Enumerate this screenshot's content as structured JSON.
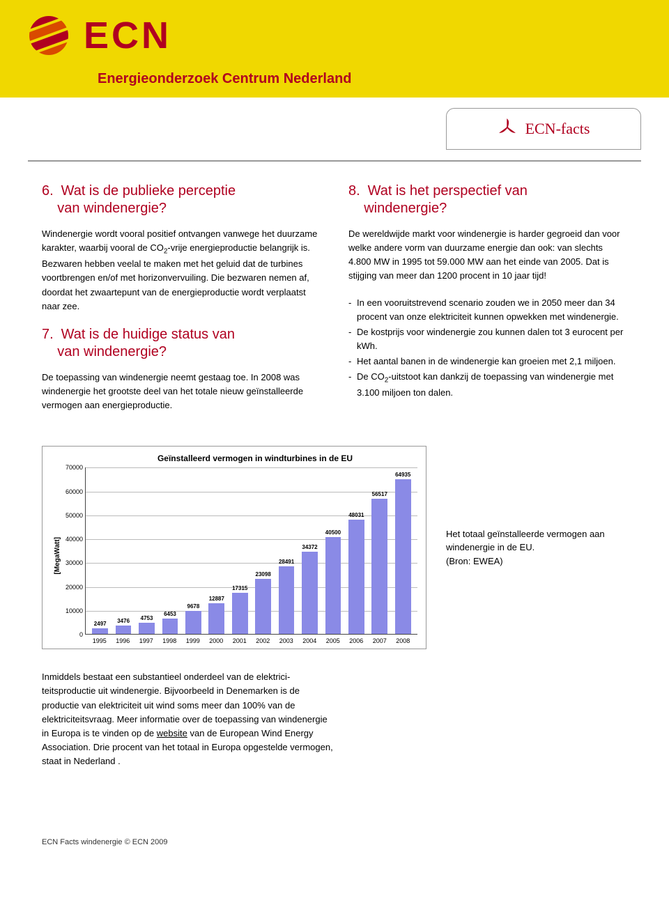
{
  "brand": {
    "name": "ECN",
    "tagline": "Energieonderzoek Centrum Nederland",
    "facts_label": "ECN-facts",
    "accent_color": "#b00020",
    "header_bg": "#f0d800"
  },
  "left_column": {
    "section6": {
      "num": "6.",
      "title_l1": "Wat is de publieke perceptie",
      "title_l2": "van windenergie?",
      "body": "Windenergie wordt vooral positief ontvangen vanwege het duurzame karakter, waarbij vooral de CO",
      "body_sub": "2",
      "body_tail": "-vrije energieproductie belangrijk is. Bezwaren hebben veelal te maken met het geluid dat de turbines voortbrengen en/of met horizonvervuiling. Die bezwaren nemen af, doordat het zwaartepunt van de energie­productie wordt verplaatst naar zee."
    },
    "section7": {
      "num": "7.",
      "title_l1": "Wat is de huidige status van",
      "title_l2": "van windenergie?",
      "body": "De toepassing van windenergie neemt gestaag toe. In 2008 was windenergie het grootste deel van het totale nieuw geïnstalleerde vermogen aan energieproductie."
    }
  },
  "right_column": {
    "section8": {
      "num": "8.",
      "title_l1": "Wat is het perspectief van",
      "title_l2": "windenergie?",
      "intro": "De wereldwijde markt voor windenergie is harder gegroeid dan voor welke andere vorm van duurzame energie dan ook: van slechts 4.800 MW in 1995 tot 59.000 MW aan het einde van 2005. Dat is stijging van meer dan 1200 procent in 10 jaar tijd!",
      "bullets": [
        "In een vooruitstrevend scenario zouden we in 2050 meer dan 34 procent van onze elektriciteit kunnen opwekken met windenergie.",
        "De kostprijs voor windenergie zou kunnen dalen tot 3 eurocent per kWh.",
        "Het aantal banen in de windenergie kan groeien met 2,1 miljoen."
      ],
      "bullet_co2_pre": "De CO",
      "bullet_co2_sub": "2",
      "bullet_co2_post": "-uitstoot kan dankzij de toepassing van windenergie met 3.100 miljoen ton dalen."
    }
  },
  "chart": {
    "type": "bar",
    "title": "Geïnstalleerd vermogen in windturbines in de EU",
    "ylabel": "[MegaWatt]",
    "categories": [
      "1995",
      "1996",
      "1997",
      "1998",
      "1999",
      "2000",
      "2001",
      "2002",
      "2003",
      "2004",
      "2005",
      "2006",
      "2007",
      "2008"
    ],
    "values": [
      2497,
      3476,
      4753,
      6453,
      9678,
      12887,
      17315,
      23098,
      28491,
      34372,
      40500,
      48031,
      56517,
      64935
    ],
    "bar_color": "#8a8ae6",
    "grid_color": "#bbbbbb",
    "axis_color": "#444444",
    "ylim_max": 70000,
    "ytick_step": 10000,
    "yticks": [
      0,
      10000,
      20000,
      30000,
      40000,
      50000,
      60000,
      70000
    ],
    "title_fontsize": 12,
    "label_fontsize": 9,
    "value_fontsize": 8,
    "background_color": "#ffffff",
    "bar_width": 0.68
  },
  "chart_caption": {
    "l1": "Het totaal geïnstalleerde vermogen aan windenergie in de EU.",
    "l2": "(Bron: EWEA)"
  },
  "lower": {
    "text_pre": "Inmiddels bestaat een substantieel onderdeel van de elektrici­teitsproductie uit windenergie. Bijvoorbeeld in Denemarken is de productie van elektriciteit uit wind soms meer dan 100% van de elektriciteitsvraag. Meer informatie over de toepassing van wind­energie in Europa is te vinden op de ",
    "link_text": "website",
    "text_post": " van de European Wind Energy Association. Drie procent van het totaal in Europa opgestelde vermogen, staat in Nederland ."
  },
  "footer": "ECN Facts windenergie © ECN 2009"
}
